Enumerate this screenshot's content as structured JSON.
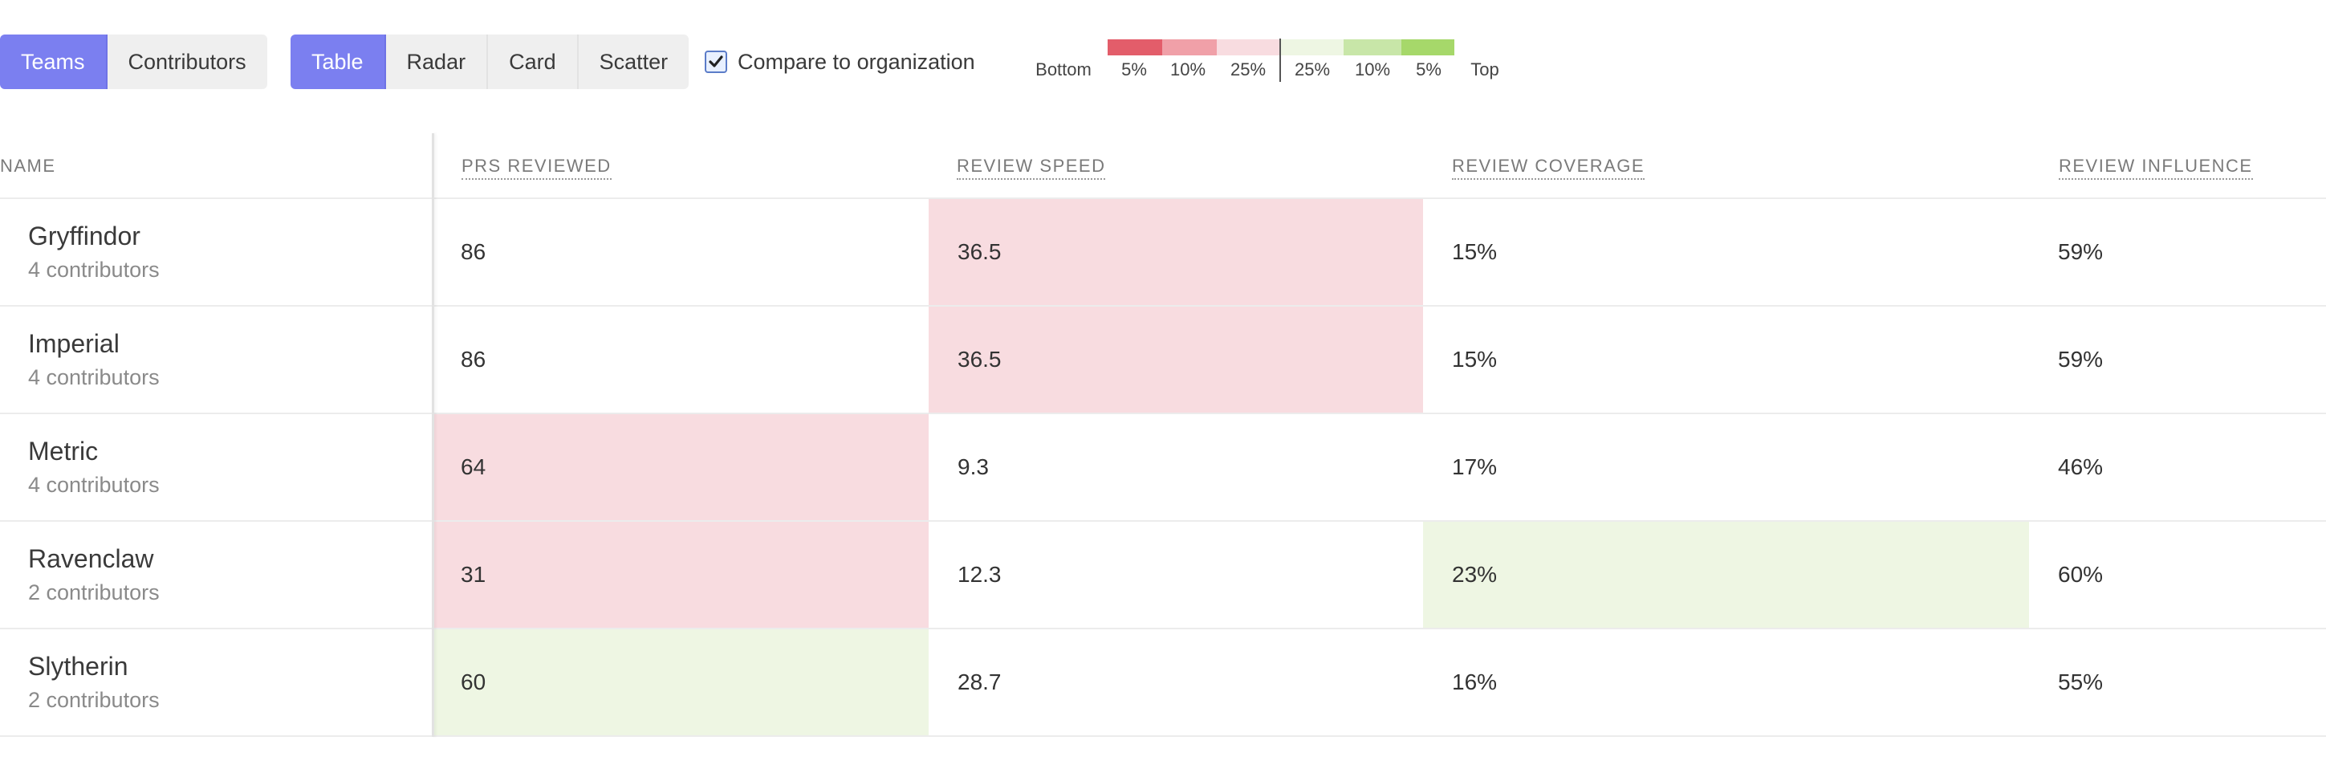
{
  "toolbar": {
    "scope_buttons": [
      {
        "label": "Teams",
        "active": true
      },
      {
        "label": "Contributors",
        "active": false
      }
    ],
    "view_buttons": [
      {
        "label": "Table",
        "active": true
      },
      {
        "label": "Radar",
        "active": false
      },
      {
        "label": "Card",
        "active": false
      },
      {
        "label": "Scatter",
        "active": false
      }
    ],
    "compare": {
      "label": "Compare to organization",
      "checked": true
    }
  },
  "legend": {
    "left_label": "Bottom",
    "right_label": "Top",
    "buckets": [
      {
        "label": "5%",
        "color": "#e35d6a"
      },
      {
        "label": "10%",
        "color": "#f0a0a8"
      },
      {
        "label": "25%",
        "color": "#f8dce0"
      },
      {
        "label": "25%",
        "color": "#eef6e3"
      },
      {
        "label": "10%",
        "color": "#c8e6a8"
      },
      {
        "label": "5%",
        "color": "#a6d86a"
      }
    ]
  },
  "table": {
    "columns": [
      "NAME",
      "PRS REVIEWED",
      "REVIEW SPEED",
      "REVIEW COVERAGE",
      "REVIEW INFLUENCE"
    ],
    "rows": [
      {
        "name": "Gryffindor",
        "sub": "4 contributors",
        "values": [
          "86",
          "36.5",
          "15%",
          "59%"
        ],
        "shade": [
          "",
          "bottom-25",
          "",
          ""
        ]
      },
      {
        "name": "Imperial",
        "sub": "4 contributors",
        "values": [
          "86",
          "36.5",
          "15%",
          "59%"
        ],
        "shade": [
          "",
          "bottom-25",
          "",
          ""
        ]
      },
      {
        "name": "Metric",
        "sub": "4 contributors",
        "values": [
          "64",
          "9.3",
          "17%",
          "46%"
        ],
        "shade": [
          "bottom-25",
          "",
          "",
          ""
        ]
      },
      {
        "name": "Ravenclaw",
        "sub": "2 contributors",
        "values": [
          "31",
          "12.3",
          "23%",
          "60%"
        ],
        "shade": [
          "bottom-25",
          "",
          "top-25",
          ""
        ]
      },
      {
        "name": "Slytherin",
        "sub": "2 contributors",
        "values": [
          "60",
          "28.7",
          "16%",
          "55%"
        ],
        "shade": [
          "top-25",
          "",
          "",
          ""
        ]
      }
    ]
  }
}
